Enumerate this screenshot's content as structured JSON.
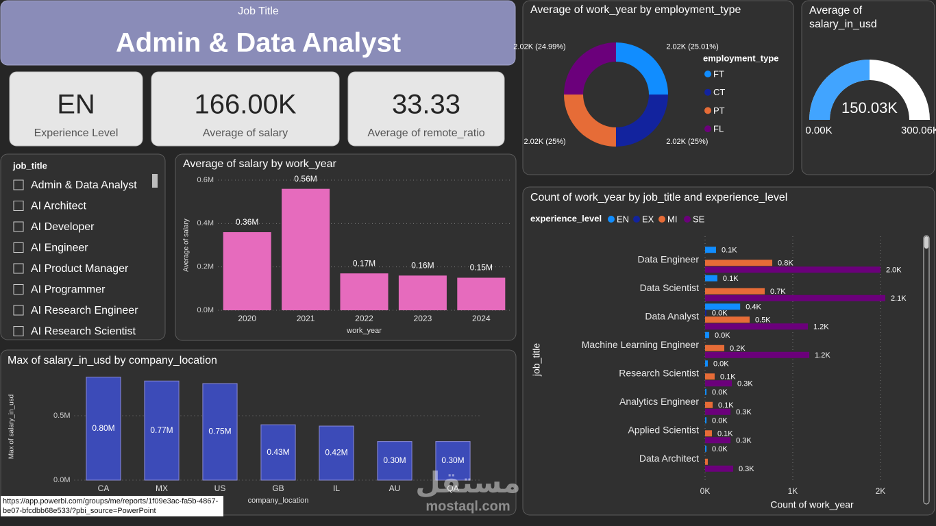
{
  "header": {
    "label": "Job Title",
    "title": "Admin & Data Analyst"
  },
  "cards": [
    {
      "value": "EN",
      "label": "Experience Level"
    },
    {
      "value": "166.00K",
      "label": "Average of salary"
    },
    {
      "value": "33.33",
      "label": "Average of remote_ratio"
    }
  ],
  "slicer": {
    "title": "job_title",
    "items": [
      "Admin & Data Analyst",
      "AI Architect",
      "AI Developer",
      "AI Engineer",
      "AI Product Manager",
      "AI Programmer",
      "AI Research Engineer",
      "AI Research Scientist"
    ]
  },
  "chart_data": [
    {
      "type": "donut",
      "title": "Average of work_year by employment_type",
      "legend_title": "employment_type",
      "categories": [
        "FT",
        "CT",
        "PT",
        "FL"
      ],
      "values": [
        25.01,
        25,
        25,
        24.99
      ],
      "value_labels": [
        "2.02K (25.01%)",
        "2.02K (25%)",
        "2.02K (25%)",
        "2.02K (24.99%)"
      ],
      "colors": [
        "#118dff",
        "#12239e",
        "#e66c37",
        "#6b007b"
      ]
    },
    {
      "type": "gauge",
      "title": "Average of salary_in_usd",
      "value": 150030,
      "value_label": "150.03K",
      "min": {
        "value": 0,
        "label": "0.00K"
      },
      "max": {
        "value": 300060,
        "label": "300.06K"
      },
      "color": "#41a4ff",
      "track_color": "#ffffff"
    },
    {
      "type": "bar",
      "title": "Average of salary by work_year",
      "xlabel": "work_year",
      "ylabel": "Average of salary",
      "categories": [
        "2020",
        "2021",
        "2022",
        "2023",
        "2024"
      ],
      "values": [
        360000,
        560000,
        170000,
        160000,
        150000
      ],
      "value_labels": [
        "0.36M",
        "0.56M",
        "0.17M",
        "0.16M",
        "0.15M"
      ],
      "color": "#e66bbd",
      "ylim": [
        0,
        600000
      ],
      "yticks": [
        {
          "value": 0,
          "label": "0.0M"
        },
        {
          "value": 200000,
          "label": "0.2M"
        },
        {
          "value": 400000,
          "label": "0.4M"
        },
        {
          "value": 600000,
          "label": "0.6M"
        }
      ],
      "grid": true
    },
    {
      "type": "bar",
      "title": "Max of salary_in_usd by company_location",
      "xlabel": "company_location",
      "ylabel": "Max of salary_in_usd",
      "categories": [
        "CA",
        "MX",
        "US",
        "GB",
        "IL",
        "AU",
        "QA"
      ],
      "values": [
        800000,
        770000,
        750000,
        430000,
        420000,
        300000,
        300000
      ],
      "value_labels": [
        "0.80M",
        "0.77M",
        "0.75M",
        "0.43M",
        "0.42M",
        "0.30M",
        "0.30M"
      ],
      "color": "#3c4bb8",
      "ylim": [
        0,
        830000
      ],
      "yticks": [
        {
          "value": 0,
          "label": "0.0M"
        },
        {
          "value": 500000,
          "label": "0.5M"
        }
      ],
      "grid": true
    },
    {
      "type": "hbar",
      "title": "Count of work_year by job_title and experience_level",
      "legend_title": "experience_level",
      "xlabel": "Count of work_year",
      "ylabel": "job_title",
      "categories": [
        "Data Engineer",
        "Data Scientist",
        "Data Analyst",
        "Machine Learning Engineer",
        "Research Scientist",
        "Analytics Engineer",
        "Applied Scientist",
        "Data Architect"
      ],
      "series": [
        {
          "name": "EN",
          "color": "#118dff",
          "values": [
            125,
            140,
            400,
            47,
            31,
            16,
            16,
            16
          ],
          "value_labels": [
            "0.1K",
            "0.1K",
            "0.4K",
            "0.0K",
            "0.0K",
            "0.0K",
            "0.0K",
            "0.0K"
          ]
        },
        {
          "name": "EX",
          "color": "#12239e",
          "values": [
            null,
            null,
            15,
            null,
            null,
            null,
            null,
            null
          ],
          "value_labels": [
            null,
            null,
            "0.0K",
            null,
            null,
            null,
            null,
            null
          ]
        },
        {
          "name": "MI",
          "color": "#e66c37",
          "values": [
            766,
            680,
            508,
            219,
            109,
            86,
            78,
            31
          ],
          "value_labels": [
            "0.8K",
            "0.7K",
            "0.5K",
            "0.2K",
            "0.1K",
            "0.1K",
            "0.1K",
            null
          ]
        },
        {
          "name": "SE",
          "color": "#6b007b",
          "values": [
            2000,
            2055,
            1172,
            1188,
            305,
            290,
            290,
            320
          ],
          "value_labels": [
            "2.0K",
            "2.1K",
            "1.2K",
            "1.2K",
            "0.3K",
            "0.3K",
            "0.3K",
            "0.3K"
          ]
        }
      ],
      "xlim": [
        0,
        2430
      ],
      "xticks": [
        {
          "value": 0,
          "label": "0K"
        },
        {
          "value": 1000,
          "label": "1K"
        },
        {
          "value": 2000,
          "label": "2K"
        }
      ],
      "grid": true
    }
  ],
  "tooltip": "https://app.powerbi.com/groups/me/reports/1f09e3ac-fa5b-4867-be07-bfcdbb68e533/?pbi_source=PowerPoint",
  "watermark": {
    "logo": "مستقل",
    "url": "mostaql.com"
  }
}
